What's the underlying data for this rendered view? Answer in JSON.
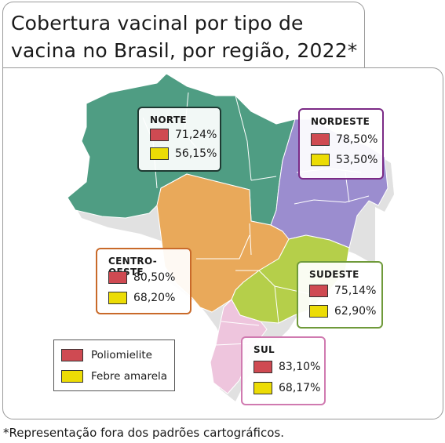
{
  "title": "Cobertura vacinal por tipo de vacina no Brasil, por região, 2022*",
  "footnote": "*Representação fora dos padrões cartográficos.",
  "legend": [
    {
      "label": "Poliomielite",
      "color": "#cf4a52"
    },
    {
      "label": "Febre amarela",
      "color": "#ecdc05"
    }
  ],
  "regions": [
    {
      "name": "NORTE",
      "poliomielite": "71,24%",
      "febre_amarela": "56,15%",
      "map_color": "#4f9d83",
      "border_color": "#1f3a33"
    },
    {
      "name": "NORDESTE",
      "poliomielite": "78,50%",
      "febre_amarela": "53,50%",
      "map_color": "#9b8dcf",
      "border_color": "#7b2a86"
    },
    {
      "name": "CENTRO-OESTE",
      "poliomielite": "80,50%",
      "febre_amarela": "68,20%",
      "map_color": "#e9a95a",
      "border_color": "#c96a2a"
    },
    {
      "name": "SUDESTE",
      "poliomielite": "75,14%",
      "febre_amarela": "62,90%",
      "map_color": "#b5cf4a",
      "border_color": "#6f9a3a"
    },
    {
      "name": "SUL",
      "poliomielite": "83,10%",
      "febre_amarela": "68,17%",
      "map_color": "#eec5dd",
      "border_color": "#d07ab0"
    }
  ]
}
